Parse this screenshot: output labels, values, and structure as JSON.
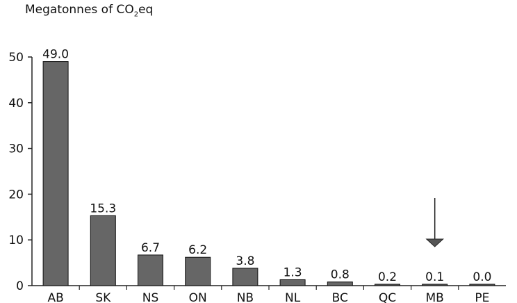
{
  "chart_data": {
    "type": "bar",
    "ylabel": {
      "pre": "Megatonnes of CO",
      "sub": "2",
      "post": "eq"
    },
    "categories": [
      "AB",
      "SK",
      "NS",
      "ON",
      "NB",
      "NL",
      "BC",
      "QC",
      "MB",
      "PE"
    ],
    "values": [
      49.0,
      15.3,
      6.7,
      6.2,
      3.8,
      1.3,
      0.8,
      0.2,
      0.1,
      0.0
    ],
    "value_labels": [
      "49.0",
      "15.3",
      "6.7",
      "6.2",
      "3.8",
      "1.3",
      "0.8",
      "0.2",
      "0.1",
      "0.0"
    ],
    "ylim": [
      0,
      50
    ],
    "yticks": [
      "0",
      "10",
      "20",
      "30",
      "40",
      "50"
    ],
    "grid": false,
    "bar_color": "#666666",
    "annotation": {
      "type": "arrow",
      "category": "MB"
    }
  }
}
